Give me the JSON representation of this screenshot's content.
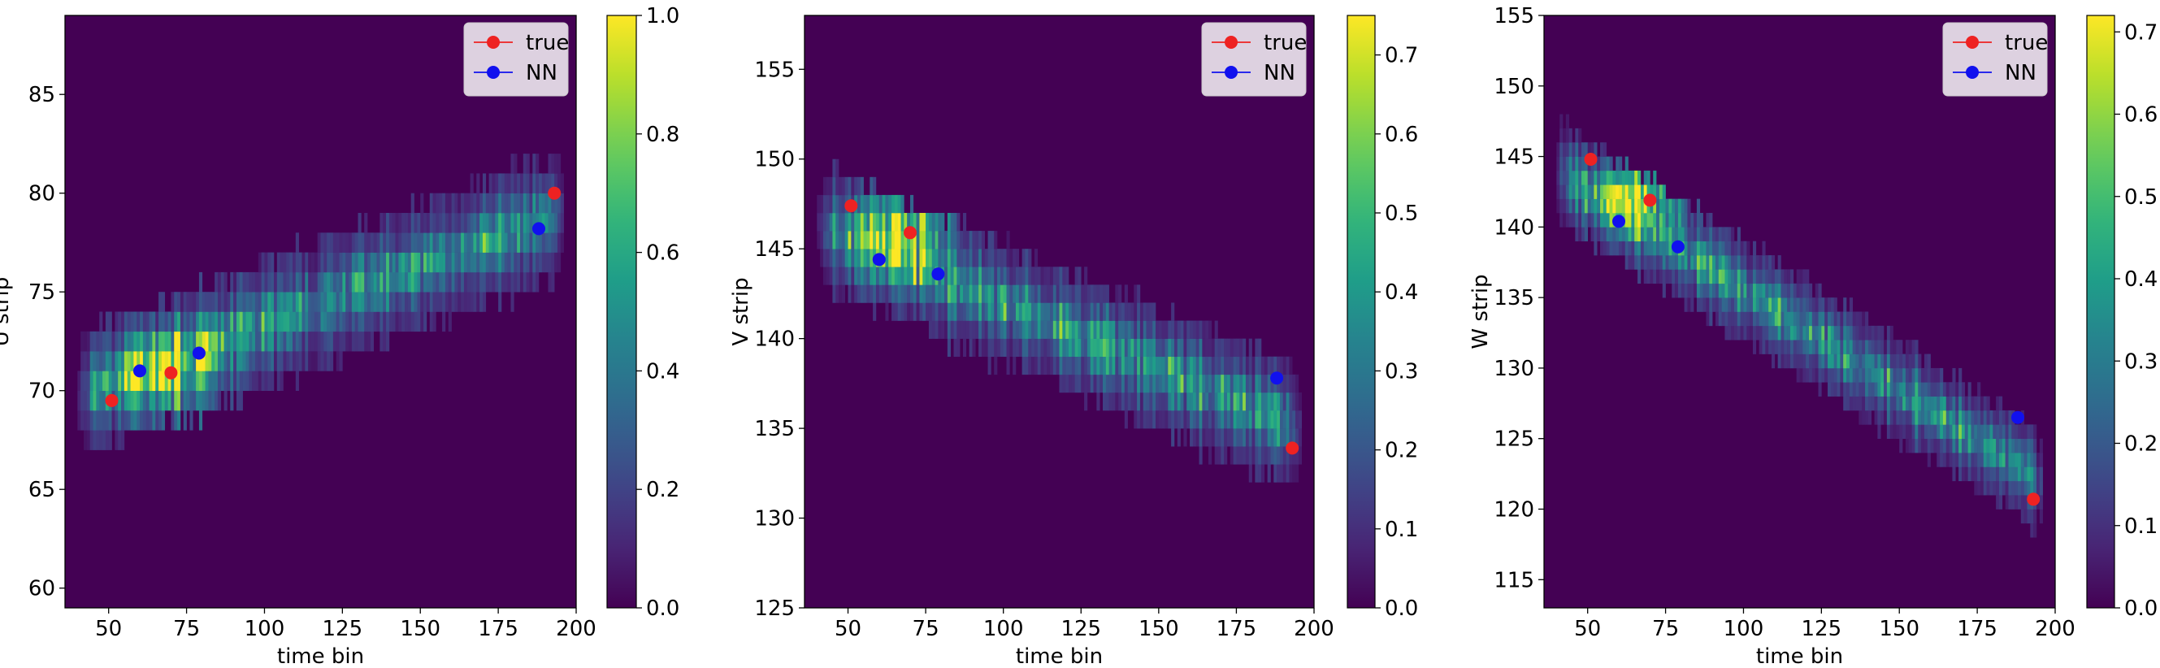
{
  "chart_data": [
    {
      "type": "heatmap",
      "xlabel": "time bin",
      "ylabel": "U strip",
      "xlim": [
        36,
        200
      ],
      "ylim": [
        59,
        89
      ],
      "xticks": [
        50,
        75,
        100,
        125,
        150,
        175,
        200
      ],
      "yticks": [
        60,
        65,
        70,
        75,
        80,
        85
      ],
      "colorbar": {
        "min": 0.0,
        "max": 1.0,
        "ticks": [
          0.0,
          0.2,
          0.4,
          0.6,
          0.8,
          1.0
        ],
        "tick_labels": [
          "0.0",
          "0.2",
          "0.4",
          "0.6",
          "0.8",
          "1.0"
        ],
        "colormap": "viridis"
      },
      "band": {
        "x_start": 40,
        "x_end": 195,
        "y_start": 69.8,
        "y_end": 79.0,
        "half_width": 1.9,
        "peak_x": 68,
        "peak_y": 70.9,
        "peak_value": 1.0
      },
      "legend": {
        "position": "top-right",
        "entries": [
          {
            "label": "true",
            "color": "#ee2222"
          },
          {
            "label": "NN",
            "color": "#1111ee"
          }
        ]
      },
      "series": [
        {
          "name": "true",
          "color": "#ee2222",
          "points": [
            [
              51,
              69.5
            ],
            [
              70,
              70.9
            ],
            [
              193,
              80.0
            ]
          ]
        },
        {
          "name": "NN",
          "color": "#1111ee",
          "points": [
            [
              60,
              71.0
            ],
            [
              79,
              71.9
            ],
            [
              188,
              78.2
            ]
          ]
        }
      ]
    },
    {
      "type": "heatmap",
      "xlabel": "time bin",
      "ylabel": "V strip",
      "xlim": [
        36,
        200
      ],
      "ylim": [
        125,
        158
      ],
      "xticks": [
        50,
        75,
        100,
        125,
        150,
        175,
        200
      ],
      "yticks": [
        125,
        130,
        135,
        140,
        145,
        150,
        155
      ],
      "colorbar": {
        "min": 0.0,
        "max": 0.75,
        "ticks": [
          0.0,
          0.1,
          0.2,
          0.3,
          0.4,
          0.5,
          0.6,
          0.7
        ],
        "tick_labels": [
          "0.0",
          "0.1",
          "0.2",
          "0.3",
          "0.4",
          "0.5",
          "0.6",
          "0.7"
        ],
        "colormap": "viridis"
      },
      "band": {
        "x_start": 40,
        "x_end": 195,
        "y_start": 146.3,
        "y_end": 135.0,
        "half_width": 2.1,
        "peak_x": 68,
        "peak_y": 146.0,
        "peak_value": 0.75
      },
      "legend": {
        "position": "top-right",
        "entries": [
          {
            "label": "true",
            "color": "#ee2222"
          },
          {
            "label": "NN",
            "color": "#1111ee"
          }
        ]
      },
      "series": [
        {
          "name": "true",
          "color": "#ee2222",
          "points": [
            [
              51,
              147.4
            ],
            [
              70,
              145.9
            ],
            [
              193,
              133.9
            ]
          ]
        },
        {
          "name": "NN",
          "color": "#1111ee",
          "points": [
            [
              60,
              144.4
            ],
            [
              79,
              143.6
            ],
            [
              188,
              137.8
            ]
          ]
        }
      ]
    },
    {
      "type": "heatmap",
      "xlabel": "time bin",
      "ylabel": "W strip",
      "xlim": [
        36,
        200
      ],
      "ylim": [
        113,
        155
      ],
      "xticks": [
        50,
        75,
        100,
        125,
        150,
        175,
        200
      ],
      "yticks": [
        115,
        120,
        125,
        130,
        135,
        140,
        145,
        150,
        155
      ],
      "colorbar": {
        "min": 0.0,
        "max": 0.72,
        "ticks": [
          0.0,
          0.1,
          0.2,
          0.3,
          0.4,
          0.5,
          0.6,
          0.7
        ],
        "tick_labels": [
          "0.0",
          "0.1",
          "0.2",
          "0.3",
          "0.4",
          "0.5",
          "0.6",
          "0.7"
        ],
        "colormap": "viridis"
      },
      "band": {
        "x_start": 40,
        "x_end": 195,
        "y_start": 144.0,
        "y_end": 122.0,
        "half_width": 2.2,
        "peak_x": 66,
        "peak_y": 142.2,
        "peak_value": 0.72
      },
      "legend": {
        "position": "top-right",
        "entries": [
          {
            "label": "true",
            "color": "#ee2222"
          },
          {
            "label": "NN",
            "color": "#1111ee"
          }
        ]
      },
      "series": [
        {
          "name": "true",
          "color": "#ee2222",
          "points": [
            [
              51,
              144.8
            ],
            [
              70,
              141.9
            ],
            [
              193,
              120.7
            ]
          ]
        },
        {
          "name": "NN",
          "color": "#1111ee",
          "points": [
            [
              60,
              140.4
            ],
            [
              79,
              138.6
            ],
            [
              188,
              126.5
            ]
          ]
        }
      ]
    }
  ]
}
